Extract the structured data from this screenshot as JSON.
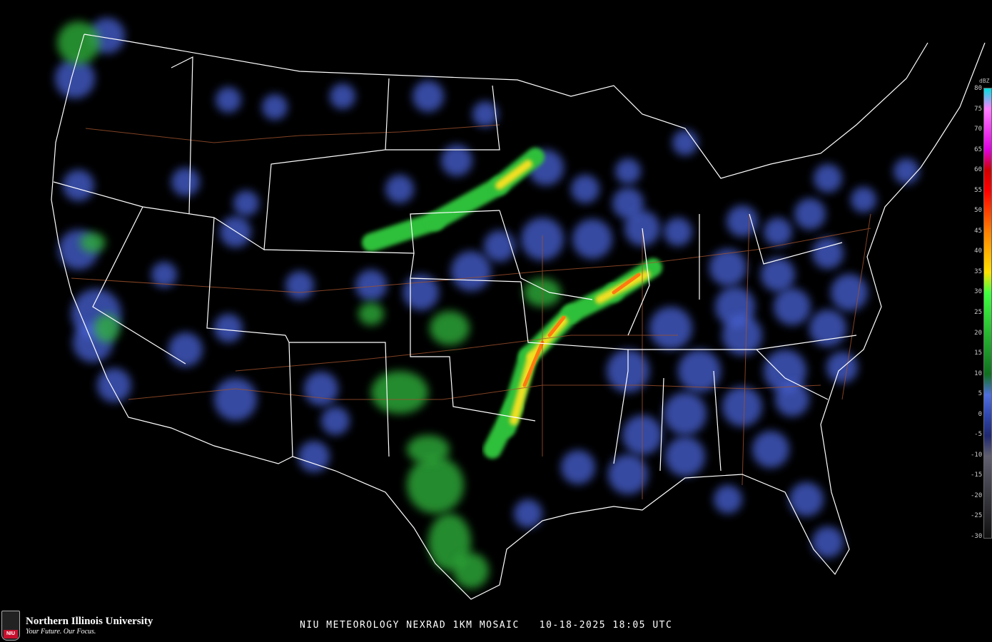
{
  "title": "NIU METEOROLOGY NEXRAD 1KM MOSAIC   10-18-2025 18:05 UTC",
  "logo": {
    "name": "Northern Illinois University",
    "tagline": "Your Future. Our Focus.",
    "badge": "NIU"
  },
  "legend": {
    "unit": "dBZ",
    "labels": [
      "80",
      "75",
      "70",
      "65",
      "60",
      "55",
      "50",
      "45",
      "40",
      "35",
      "30",
      "25",
      "20",
      "15",
      "10",
      "5",
      "0",
      "-5",
      "-10",
      "-15",
      "-20",
      "-25",
      "-30"
    ],
    "colors": {
      "80": "#00e0e0",
      "75": "#ff80ff",
      "65": "#e000e0",
      "60": "#d00000",
      "55": "#ff0000",
      "45": "#ff8000",
      "35": "#ffe000",
      "30": "#40ff40",
      "10": "#107020",
      "5": "#5070e0",
      "0": "#3048b0",
      "-5": "#202870",
      "-10": "#606070",
      "-30": "#101010"
    }
  }
}
